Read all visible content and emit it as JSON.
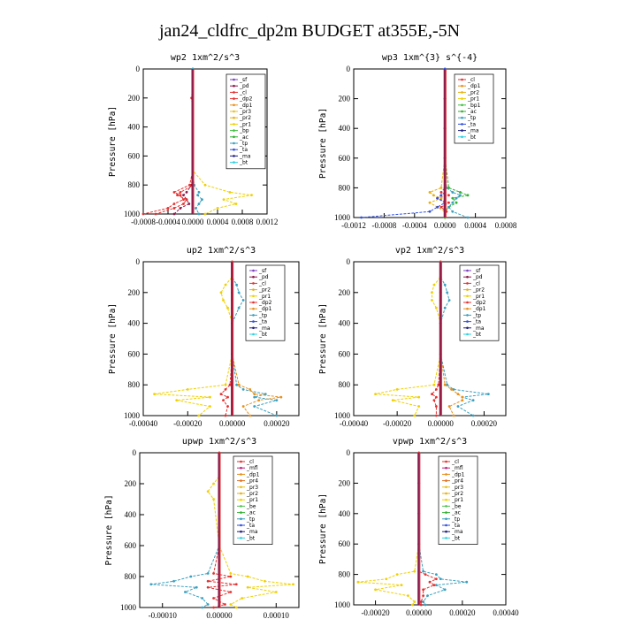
{
  "figure": {
    "title": "jan24_cldfrc_dp2m  BUDGET at355E,-5N"
  },
  "colors": {
    "sf": "#7b3fbf",
    "pd": "#8b1a4a",
    "cl": "#e53030",
    "dp2": "#e53030",
    "dp1": "#e8901c",
    "pr3": "#e8c020",
    "pr2": "#e8b010",
    "pr1": "#f0d000",
    "bp": "#40c040",
    "bp1": "#40c040",
    "ac": "#30b030",
    "tp": "#3aa0c0",
    "ta": "#3050e0",
    "ma": "#202080",
    "bt": "#30d0e0",
    "mfl": "#c02080",
    "pr4": "#e07020",
    "be": "#50c050"
  },
  "chart_data": [
    {
      "type": "line",
      "title": "wp2   1xm^2/s^3",
      "ylabel": "Pressure [hPa]",
      "ylim": [
        1000,
        0
      ],
      "xlim": [
        -0.0008,
        0.0012
      ],
      "xticks": [
        "-0.0008",
        "-0.0004",
        "0.0000",
        "0.0004",
        "0.0008",
        "0.0012"
      ],
      "yticks": [
        "0",
        "200",
        "400",
        "600",
        "800",
        "1000"
      ],
      "legend": [
        "_sf",
        "_pd",
        "_cl",
        "_dp2",
        "_dp1",
        "_pr3",
        "_pr2",
        "_pr1",
        "_bp",
        "_ac",
        "_tp",
        "_ta",
        "_ma",
        "_bt"
      ],
      "pressure": [
        0,
        100,
        200,
        300,
        400,
        500,
        600,
        700,
        800,
        850,
        870,
        900,
        930,
        960,
        1000
      ],
      "series": [
        {
          "name": "_pd",
          "values": [
            0,
            0,
            0,
            0,
            0,
            0,
            0,
            0,
            -2e-05,
            -0.0001,
            -0.00015,
            -0.0001,
            -6e-05,
            -0.0002,
            -0.0003
          ]
        },
        {
          "name": "_cl",
          "values": [
            0,
            0,
            -2e-05,
            0,
            0,
            0,
            0,
            0,
            -5e-05,
            -0.0003,
            -0.0002,
            -0.00015,
            -0.0003,
            -0.0004,
            -0.0008
          ]
        },
        {
          "name": "_dp2",
          "values": [
            0,
            0,
            0,
            0,
            0,
            0,
            0,
            0,
            2e-05,
            -0.0002,
            -0.00025,
            -0.0001,
            -0.00015,
            -0.0003,
            -0.0006
          ]
        },
        {
          "name": "_pr1",
          "values": [
            0,
            0,
            0,
            0,
            0,
            0,
            0,
            0,
            0.0002,
            0.0006,
            0.00095,
            0.0005,
            0.0007,
            0.0004,
            0.0002
          ]
        },
        {
          "name": "_tp",
          "values": [
            0,
            0,
            0,
            0,
            0,
            0,
            0,
            0,
            2e-05,
            0.0001,
            8e-05,
            0.00015,
            0.0001,
            5e-05,
            0.0001
          ]
        }
      ]
    },
    {
      "type": "line",
      "title": "wp3   1xm^{3} s^{-4}",
      "ylabel": "Pressure [hPa]",
      "ylim": [
        1000,
        0
      ],
      "xlim": [
        -0.0012,
        0.0008
      ],
      "xticks": [
        "-0.0012",
        "-0.0008",
        "-0.0004",
        "0.0000",
        "0.0004",
        "0.0008"
      ],
      "yticks": [
        "0",
        "200",
        "400",
        "600",
        "800",
        "1000"
      ],
      "legend": [
        "_cl",
        "_dp1",
        "_pr2",
        "_pr1",
        "_bp1",
        "_ac",
        "_tp",
        "_ta",
        "_ma",
        "_bt"
      ],
      "pressure": [
        0,
        200,
        400,
        600,
        800,
        830,
        850,
        870,
        900,
        930,
        960,
        1000
      ],
      "series": [
        {
          "name": "_cl",
          "values": [
            0,
            0,
            0,
            0,
            0,
            -5e-05,
            5e-05,
            -0.0001,
            5e-05,
            -5e-05,
            2e-05,
            0
          ]
        },
        {
          "name": "_pr2",
          "values": [
            0,
            0,
            0,
            0,
            -5e-05,
            -0.0002,
            -0.00015,
            -5e-05,
            -0.0002,
            -0.0001,
            0,
            0
          ]
        },
        {
          "name": "_ac",
          "values": [
            0,
            0,
            0,
            0,
            5e-05,
            0.0002,
            0.0003,
            0.0001,
            0.00015,
            5e-05,
            0,
            0
          ]
        },
        {
          "name": "_tp",
          "values": [
            0,
            0,
            0,
            0,
            2e-05,
            0.0001,
            0.0002,
            0.00015,
            0.0001,
            5e-05,
            0.0001,
            0.0003
          ]
        },
        {
          "name": "_ta",
          "values": [
            0,
            0,
            0,
            0,
            0,
            0,
            -5e-05,
            -0.0001,
            0,
            -0.0001,
            -0.0002,
            -0.0011
          ]
        }
      ]
    },
    {
      "type": "line",
      "title": "up2   1xm^2/s^3",
      "ylabel": "Pressure [hPa]",
      "ylim": [
        1000,
        0
      ],
      "xlim": [
        -0.0004,
        0.0003
      ],
      "xticks": [
        "-0.00040",
        "-0.00020",
        "0.00000",
        "0.00020"
      ],
      "xtickvals": [
        -0.0004,
        -0.0002,
        0.0,
        0.0002
      ],
      "yticks": [
        "0",
        "200",
        "400",
        "600",
        "800",
        "1000"
      ],
      "legend": [
        "_sf",
        "_pd",
        "_cl",
        "_pr2",
        "_pr1",
        "_dp2",
        "_dp1",
        "_tp",
        "_ta",
        "_ma",
        "_bt"
      ],
      "pressure": [
        0,
        100,
        150,
        200,
        250,
        300,
        400,
        600,
        800,
        830,
        860,
        880,
        900,
        940,
        1000
      ],
      "series": [
        {
          "name": "_pr1",
          "values": [
            0,
            0,
            -3e-05,
            -5e-05,
            -4e-05,
            -2e-05,
            0,
            0,
            -3e-05,
            -0.0002,
            -0.00035,
            -0.0001,
            -0.00025,
            -0.0001,
            -0.00015
          ]
        },
        {
          "name": "_tp",
          "values": [
            0,
            0,
            2e-05,
            3e-05,
            5e-05,
            3e-05,
            0,
            0,
            2e-05,
            5e-05,
            0.00015,
            0.0001,
            0.0002,
            0.0001,
            0.0002
          ]
        },
        {
          "name": "_dp1",
          "values": [
            0,
            0,
            0,
            0,
            0,
            0,
            0,
            0,
            3e-05,
            8e-05,
            0.0001,
            0.00022,
            0.00012,
            5e-05,
            8e-05
          ]
        },
        {
          "name": "_cl",
          "values": [
            0,
            0,
            0,
            0,
            0,
            0,
            0,
            0,
            -1e-05,
            -3e-05,
            -5e-05,
            -2e-05,
            -4e-05,
            -2e-05,
            -3e-05
          ]
        }
      ]
    },
    {
      "type": "line",
      "title": "vp2   1xm^2/s^3",
      "ylabel": "Pressure [hPa]",
      "ylim": [
        1000,
        0
      ],
      "xlim": [
        -0.0004,
        0.0003
      ],
      "xticks": [
        "-0.00040",
        "-0.00020",
        "0.00000",
        "0.00020"
      ],
      "xtickvals": [
        -0.0004,
        -0.0002,
        0.0,
        0.0002
      ],
      "yticks": [
        "0",
        "200",
        "400",
        "600",
        "800",
        "1000"
      ],
      "legend": [
        "_sf",
        "_pd",
        "_cl",
        "_pr2",
        "_pr1",
        "_dp2",
        "_dp1",
        "_tp",
        "_ta",
        "_ma",
        "_bt"
      ],
      "pressure": [
        0,
        100,
        150,
        200,
        250,
        300,
        400,
        600,
        800,
        830,
        860,
        880,
        900,
        940,
        1000
      ],
      "series": [
        {
          "name": "_pr1",
          "values": [
            0,
            0,
            -3e-05,
            -4e-05,
            -4e-05,
            -2e-05,
            0,
            0,
            -3e-05,
            -0.0002,
            -0.0003,
            -0.0001,
            -0.00022,
            -0.0001,
            -0.00012
          ]
        },
        {
          "name": "_tp",
          "values": [
            0,
            0,
            2e-05,
            3e-05,
            4e-05,
            2e-05,
            0,
            0,
            3e-05,
            6e-05,
            0.00022,
            0.0001,
            0.00015,
            8e-05,
            0.00015
          ]
        },
        {
          "name": "_dp1",
          "values": [
            0,
            0,
            0,
            0,
            0,
            0,
            0,
            0,
            2e-05,
            5e-05,
            8e-05,
            0.0001,
            0.0001,
            4e-05,
            6e-05
          ]
        },
        {
          "name": "_cl",
          "values": [
            0,
            0,
            0,
            0,
            0,
            0,
            0,
            0,
            -1e-05,
            -2e-05,
            -4e-05,
            -2e-05,
            -3e-05,
            -2e-05,
            -2e-05
          ]
        }
      ]
    },
    {
      "type": "line",
      "title": "upwp   1xm^2/s^3",
      "ylabel": "Pressure [hPa]",
      "ylim": [
        1000,
        0
      ],
      "xlim": [
        -0.00014,
        0.00014
      ],
      "xticks": [
        "-0.00010",
        "0.00000",
        "0.00010"
      ],
      "xtickvals": [
        -0.0001,
        0.0,
        0.0001
      ],
      "yticks": [
        "0",
        "200",
        "400",
        "600",
        "800",
        "1000"
      ],
      "legend": [
        "_cl",
        "_mfl",
        "_dp1",
        "_pr4",
        "_pr3",
        "_pr2",
        "_pr1",
        "_be",
        "_ac",
        "_tp",
        "_ta",
        "_ma",
        "_bt"
      ],
      "pressure": [
        0,
        150,
        200,
        250,
        300,
        600,
        780,
        800,
        830,
        850,
        870,
        900,
        940,
        980,
        1000
      ],
      "series": [
        {
          "name": "_pr1",
          "values": [
            0,
            0,
            -1e-05,
            -2e-05,
            -1e-05,
            0,
            2e-05,
            5e-05,
            8e-05,
            0.00013,
            5e-05,
            0.0001,
            4e-05,
            2e-05,
            3e-05
          ]
        },
        {
          "name": "_tp",
          "values": [
            0,
            0,
            0,
            0,
            0,
            0,
            -2e-05,
            -5e-05,
            -8e-05,
            -0.00012,
            -4e-05,
            -6e-05,
            -3e-05,
            -2e-05,
            -3e-05
          ]
        },
        {
          "name": "_cl",
          "values": [
            0,
            0,
            0,
            0,
            0,
            0,
            -1e-05,
            2e-05,
            -2e-05,
            3e-05,
            -2e-05,
            2e-05,
            -1e-05,
            1e-05,
            -1e-05
          ]
        }
      ]
    },
    {
      "type": "line",
      "title": "vpwp   1xm^2/s^3",
      "ylabel": "Pressure [hPa]",
      "ylim": [
        1000,
        0
      ],
      "xlim": [
        -0.0003,
        0.0004
      ],
      "xticks": [
        "-0.00020",
        "0.00000",
        "0.00020",
        "0.00040"
      ],
      "xtickvals": [
        -0.0002,
        0.0,
        0.0002,
        0.0004
      ],
      "yticks": [
        "0",
        "200",
        "400",
        "600",
        "800",
        "1000"
      ],
      "legend": [
        "_cl",
        "_mfl",
        "_dp1",
        "_pr4",
        "_pr3",
        "_pr2",
        "_pr1",
        "_be",
        "_ac",
        "_tp",
        "_ta",
        "_ma",
        "_bt"
      ],
      "pressure": [
        0,
        200,
        400,
        600,
        780,
        800,
        830,
        850,
        870,
        900,
        940,
        980,
        1000
      ],
      "series": [
        {
          "name": "_pr1",
          "values": [
            0,
            0,
            0,
            0,
            -2e-05,
            -0.0001,
            -0.00015,
            -0.00028,
            -8e-05,
            -0.0002,
            -5e-05,
            -2e-05,
            -3e-05
          ]
        },
        {
          "name": "_tp",
          "values": [
            0,
            0,
            0,
            0,
            2e-05,
            8e-05,
            0.0001,
            0.00022,
            8e-05,
            0.00012,
            4e-05,
            2e-05,
            3e-05
          ]
        },
        {
          "name": "_cl",
          "values": [
            0,
            0,
            0,
            0,
            0,
            3e-05,
            8e-05,
            5e-05,
            7e-05,
            2e-05,
            2e-05,
            1e-05,
            1e-05
          ]
        }
      ]
    }
  ]
}
